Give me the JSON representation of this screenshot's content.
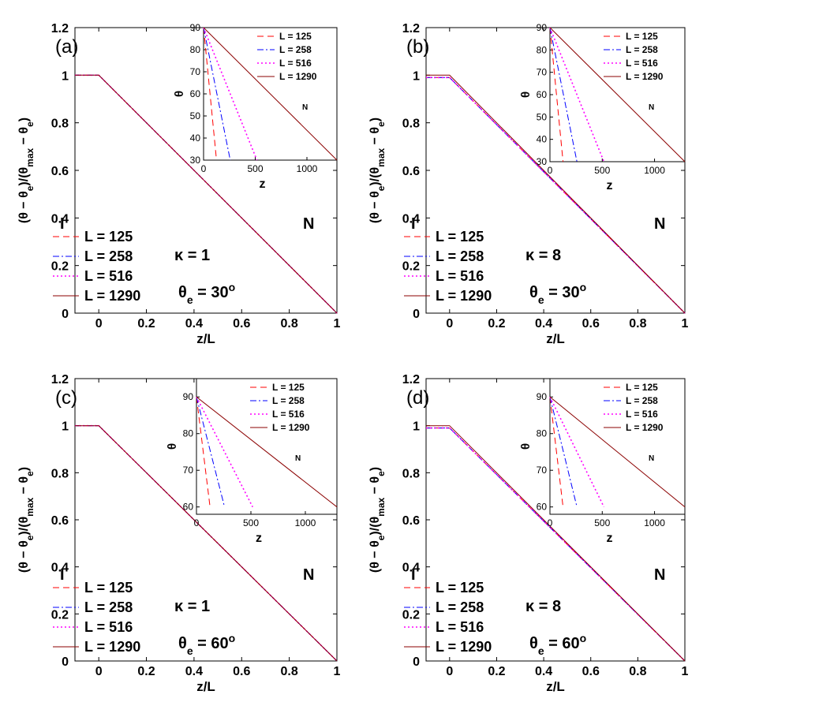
{
  "chart_data": [
    {
      "type": "line",
      "panel_label": "(a)",
      "xlabel": "z/L",
      "ylabel": "(θ − θe)/(θmax − θe)",
      "xlim": [
        -0.1,
        1
      ],
      "ylim": [
        0,
        1.2
      ],
      "x_ticks": [
        "0",
        "0.2",
        "0.4",
        "0.6",
        "0.8",
        "1"
      ],
      "y_ticks": [
        "0",
        "0.2",
        "0.4",
        "0.6",
        "0.8",
        "1",
        "1.2"
      ],
      "series": [
        {
          "name": "L = 125",
          "color": "#ff0000",
          "style": "dashed",
          "x": [
            -0.1,
            0,
            1
          ],
          "y": [
            1,
            1,
            0
          ]
        },
        {
          "name": "L = 258",
          "color": "#0000ff",
          "style": "dashdot",
          "x": [
            -0.1,
            0,
            1
          ],
          "y": [
            1,
            1,
            0
          ]
        },
        {
          "name": "L = 516",
          "color": "#ff00ff",
          "style": "dotted",
          "x": [
            -0.1,
            0,
            1
          ],
          "y": [
            1,
            1,
            0
          ]
        },
        {
          "name": "L = 1290",
          "color": "#8b0000",
          "style": "solid",
          "x": [
            -0.1,
            0,
            1
          ],
          "y": [
            1,
            1,
            0
          ]
        }
      ],
      "annotations": {
        "left": "I",
        "right": "N",
        "kappa": "κ = 1",
        "theta": "θe = 30o"
      },
      "inset": {
        "xlabel": "z",
        "ylabel": "θ",
        "xlim": [
          0,
          1290
        ],
        "ylim": [
          30,
          90
        ],
        "x_ticks": [
          "0",
          "500",
          "1000"
        ],
        "y_ticks": [
          "30",
          "40",
          "50",
          "60",
          "70",
          "80",
          "90"
        ],
        "label_n": "N",
        "series": [
          {
            "name": "L = 125",
            "x": [
              0,
              125
            ],
            "y": [
              90,
              30
            ]
          },
          {
            "name": "L = 258",
            "x": [
              0,
              258
            ],
            "y": [
              90,
              30
            ]
          },
          {
            "name": "L = 516",
            "x": [
              0,
              516
            ],
            "y": [
              90,
              30
            ]
          },
          {
            "name": "L = 1290",
            "x": [
              0,
              1290
            ],
            "y": [
              90,
              30
            ]
          }
        ]
      }
    },
    {
      "type": "line",
      "panel_label": "(b)",
      "xlabel": "z/L",
      "ylabel": "(θ − θe)/(θmax − θe)",
      "xlim": [
        -0.1,
        1
      ],
      "ylim": [
        0,
        1.2
      ],
      "x_ticks": [
        "0",
        "0.2",
        "0.4",
        "0.6",
        "0.8",
        "1"
      ],
      "y_ticks": [
        "0",
        "0.2",
        "0.4",
        "0.6",
        "0.8",
        "1",
        "1.2"
      ],
      "series": [
        {
          "name": "L = 125",
          "color": "#ff0000",
          "style": "dashed",
          "x": [
            -0.1,
            0,
            1
          ],
          "y": [
            0.99,
            0.99,
            0
          ]
        },
        {
          "name": "L = 258",
          "color": "#0000ff",
          "style": "dashdot",
          "x": [
            -0.1,
            0,
            1
          ],
          "y": [
            0.99,
            0.99,
            0
          ]
        },
        {
          "name": "L = 516",
          "color": "#ff00ff",
          "style": "dotted",
          "x": [
            -0.1,
            0,
            1
          ],
          "y": [
            0.99,
            0.99,
            0
          ]
        },
        {
          "name": "L = 1290",
          "color": "#8b0000",
          "style": "solid",
          "x": [
            -0.1,
            0,
            1
          ],
          "y": [
            1,
            1,
            0
          ]
        }
      ],
      "annotations": {
        "left": "I",
        "right": "N",
        "kappa": "κ = 8",
        "theta": "θe = 30o"
      },
      "inset": {
        "xlabel": "z",
        "ylabel": "θ",
        "xlim": [
          0,
          1290
        ],
        "ylim": [
          30,
          90
        ],
        "x_ticks": [
          "0",
          "500",
          "1000"
        ],
        "y_ticks": [
          "30",
          "40",
          "50",
          "60",
          "70",
          "80",
          "90"
        ],
        "label_n": "N",
        "series": [
          {
            "name": "L = 125",
            "x": [
              0,
              125
            ],
            "y": [
              90,
              30
            ]
          },
          {
            "name": "L = 258",
            "x": [
              0,
              258
            ],
            "y": [
              90,
              30
            ]
          },
          {
            "name": "L = 516",
            "x": [
              0,
              516
            ],
            "y": [
              90,
              30
            ]
          },
          {
            "name": "L = 1290",
            "x": [
              0,
              1290
            ],
            "y": [
              90,
              30
            ]
          }
        ]
      }
    },
    {
      "type": "line",
      "panel_label": "(c)",
      "xlabel": "z/L",
      "ylabel": "(θ − θe)/(θmax − θe)",
      "xlim": [
        -0.1,
        1
      ],
      "ylim": [
        0,
        1.2
      ],
      "x_ticks": [
        "0",
        "0.2",
        "0.4",
        "0.6",
        "0.8",
        "1"
      ],
      "y_ticks": [
        "0",
        "0.2",
        "0.4",
        "0.6",
        "0.8",
        "1",
        "1.2"
      ],
      "series": [
        {
          "name": "L = 125",
          "color": "#ff0000",
          "style": "dashed",
          "x": [
            -0.1,
            0,
            1
          ],
          "y": [
            1,
            1,
            0
          ]
        },
        {
          "name": "L = 258",
          "color": "#0000ff",
          "style": "dashdot",
          "x": [
            -0.1,
            0,
            1
          ],
          "y": [
            1,
            1,
            0
          ]
        },
        {
          "name": "L = 516",
          "color": "#ff00ff",
          "style": "dotted",
          "x": [
            -0.1,
            0,
            1
          ],
          "y": [
            1,
            1,
            0
          ]
        },
        {
          "name": "L = 1290",
          "color": "#8b0000",
          "style": "solid",
          "x": [
            -0.1,
            0,
            1
          ],
          "y": [
            1,
            1,
            0
          ]
        }
      ],
      "annotations": {
        "left": "I",
        "right": "N",
        "kappa": "κ = 1",
        "theta": "θe = 60o"
      },
      "inset": {
        "xlabel": "z",
        "ylabel": "θ",
        "xlim": [
          0,
          1290
        ],
        "ylim": [
          58,
          95
        ],
        "x_ticks": [
          "0",
          "500",
          "1000"
        ],
        "y_ticks": [
          "60",
          "70",
          "80",
          "90"
        ],
        "label_n": "N",
        "series": [
          {
            "name": "L = 125",
            "x": [
              0,
              125
            ],
            "y": [
              90,
              60
            ]
          },
          {
            "name": "L = 258",
            "x": [
              0,
              258
            ],
            "y": [
              90,
              60
            ]
          },
          {
            "name": "L = 516",
            "x": [
              0,
              516
            ],
            "y": [
              90,
              60
            ]
          },
          {
            "name": "L = 1290",
            "x": [
              0,
              1290
            ],
            "y": [
              90,
              60
            ]
          }
        ]
      }
    },
    {
      "type": "line",
      "panel_label": "(d)",
      "xlabel": "z/L",
      "ylabel": "(θ − θe)/(θmax − θe)",
      "xlim": [
        -0.1,
        1
      ],
      "ylim": [
        0,
        1.2
      ],
      "x_ticks": [
        "0",
        "0.2",
        "0.4",
        "0.6",
        "0.8",
        "1"
      ],
      "y_ticks": [
        "0",
        "0.2",
        "0.4",
        "0.6",
        "0.8",
        "1",
        "1.2"
      ],
      "series": [
        {
          "name": "L = 125",
          "color": "#ff0000",
          "style": "dashed",
          "x": [
            -0.1,
            0,
            1
          ],
          "y": [
            0.99,
            0.99,
            0
          ]
        },
        {
          "name": "L = 258",
          "color": "#0000ff",
          "style": "dashdot",
          "x": [
            -0.1,
            0,
            1
          ],
          "y": [
            0.99,
            0.99,
            0
          ]
        },
        {
          "name": "L = 516",
          "color": "#ff00ff",
          "style": "dotted",
          "x": [
            -0.1,
            0,
            1
          ],
          "y": [
            0.99,
            0.99,
            0
          ]
        },
        {
          "name": "L = 1290",
          "color": "#8b0000",
          "style": "solid",
          "x": [
            -0.1,
            0,
            1
          ],
          "y": [
            1,
            1,
            0
          ]
        }
      ],
      "annotations": {
        "left": "I",
        "right": "N",
        "kappa": "κ = 8",
        "theta": "θe = 60o"
      },
      "inset": {
        "xlabel": "z",
        "ylabel": "θ",
        "xlim": [
          0,
          1290
        ],
        "ylim": [
          58,
          95
        ],
        "x_ticks": [
          "0",
          "500",
          "1000"
        ],
        "y_ticks": [
          "60",
          "70",
          "80",
          "90"
        ],
        "label_n": "N",
        "series": [
          {
            "name": "L = 125",
            "x": [
              0,
              125
            ],
            "y": [
              90,
              60
            ]
          },
          {
            "name": "L = 258",
            "x": [
              0,
              258
            ],
            "y": [
              90,
              60
            ]
          },
          {
            "name": "L = 516",
            "x": [
              0,
              516
            ],
            "y": [
              90,
              60
            ]
          },
          {
            "name": "L = 1290",
            "x": [
              0,
              1290
            ],
            "y": [
              90,
              60
            ]
          }
        ]
      }
    }
  ]
}
